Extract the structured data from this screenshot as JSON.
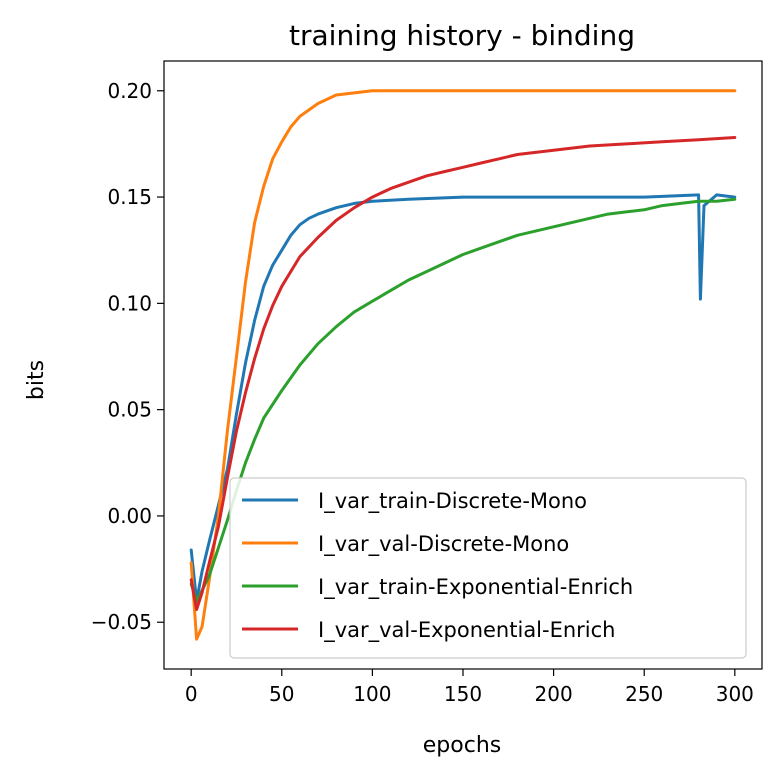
{
  "chart_data": {
    "type": "line",
    "title": "training history - binding",
    "xlabel": "epochs",
    "ylabel": "bits",
    "xlim": [
      -15,
      315
    ],
    "ylim": [
      -0.072,
      0.214
    ],
    "xticks": [
      0,
      50,
      100,
      150,
      200,
      250,
      300
    ],
    "xtick_labels": [
      "0",
      "50",
      "100",
      "150",
      "200",
      "250",
      "300"
    ],
    "yticks": [
      -0.05,
      0.0,
      0.05,
      0.1,
      0.15,
      0.2
    ],
    "ytick_labels": [
      "−0.05",
      "0.00",
      "0.05",
      "0.10",
      "0.15",
      "0.20"
    ],
    "grid": false,
    "legend_position": "lower-right",
    "series": [
      {
        "name": "I_var_train-Discrete-Mono",
        "color": "#1f77b4",
        "points": [
          [
            0,
            -0.016
          ],
          [
            3,
            -0.04
          ],
          [
            6,
            -0.026
          ],
          [
            10,
            -0.012
          ],
          [
            15,
            0.005
          ],
          [
            20,
            0.022
          ],
          [
            25,
            0.048
          ],
          [
            30,
            0.072
          ],
          [
            35,
            0.092
          ],
          [
            40,
            0.108
          ],
          [
            45,
            0.118
          ],
          [
            50,
            0.125
          ],
          [
            55,
            0.132
          ],
          [
            60,
            0.137
          ],
          [
            65,
            0.14
          ],
          [
            70,
            0.142
          ],
          [
            80,
            0.145
          ],
          [
            90,
            0.147
          ],
          [
            100,
            0.148
          ],
          [
            120,
            0.149
          ],
          [
            150,
            0.15
          ],
          [
            200,
            0.15
          ],
          [
            250,
            0.15
          ],
          [
            280,
            0.151
          ],
          [
            281,
            0.102
          ],
          [
            283,
            0.146
          ],
          [
            290,
            0.151
          ],
          [
            300,
            0.15
          ]
        ]
      },
      {
        "name": "I_var_val-Discrete-Mono",
        "color": "#ff7f0e",
        "points": [
          [
            0,
            -0.022
          ],
          [
            3,
            -0.058
          ],
          [
            6,
            -0.052
          ],
          [
            10,
            -0.03
          ],
          [
            15,
            0.0
          ],
          [
            20,
            0.04
          ],
          [
            25,
            0.075
          ],
          [
            30,
            0.11
          ],
          [
            35,
            0.138
          ],
          [
            40,
            0.155
          ],
          [
            45,
            0.168
          ],
          [
            50,
            0.176
          ],
          [
            55,
            0.183
          ],
          [
            60,
            0.188
          ],
          [
            65,
            0.191
          ],
          [
            70,
            0.194
          ],
          [
            80,
            0.198
          ],
          [
            90,
            0.199
          ],
          [
            100,
            0.2
          ],
          [
            150,
            0.2
          ],
          [
            200,
            0.2
          ],
          [
            250,
            0.2
          ],
          [
            300,
            0.2
          ]
        ]
      },
      {
        "name": "I_var_train-Exponential-Enrich",
        "color": "#2ca02c",
        "points": [
          [
            0,
            -0.032
          ],
          [
            3,
            -0.04
          ],
          [
            6,
            -0.035
          ],
          [
            10,
            -0.028
          ],
          [
            15,
            -0.015
          ],
          [
            20,
            -0.002
          ],
          [
            25,
            0.012
          ],
          [
            30,
            0.025
          ],
          [
            35,
            0.036
          ],
          [
            40,
            0.046
          ],
          [
            50,
            0.059
          ],
          [
            60,
            0.071
          ],
          [
            70,
            0.081
          ],
          [
            80,
            0.089
          ],
          [
            90,
            0.096
          ],
          [
            100,
            0.101
          ],
          [
            110,
            0.106
          ],
          [
            120,
            0.111
          ],
          [
            130,
            0.115
          ],
          [
            140,
            0.119
          ],
          [
            150,
            0.123
          ],
          [
            160,
            0.126
          ],
          [
            170,
            0.129
          ],
          [
            180,
            0.132
          ],
          [
            190,
            0.134
          ],
          [
            200,
            0.136
          ],
          [
            210,
            0.138
          ],
          [
            220,
            0.14
          ],
          [
            230,
            0.142
          ],
          [
            240,
            0.143
          ],
          [
            250,
            0.144
          ],
          [
            260,
            0.146
          ],
          [
            270,
            0.147
          ],
          [
            280,
            0.148
          ],
          [
            290,
            0.148
          ],
          [
            300,
            0.149
          ]
        ]
      },
      {
        "name": "I_var_val-Exponential-Enrich",
        "color": "#d62728",
        "points": [
          [
            0,
            -0.03
          ],
          [
            3,
            -0.044
          ],
          [
            6,
            -0.036
          ],
          [
            10,
            -0.022
          ],
          [
            15,
            -0.005
          ],
          [
            20,
            0.018
          ],
          [
            25,
            0.04
          ],
          [
            30,
            0.058
          ],
          [
            35,
            0.074
          ],
          [
            40,
            0.088
          ],
          [
            45,
            0.099
          ],
          [
            50,
            0.108
          ],
          [
            55,
            0.115
          ],
          [
            60,
            0.122
          ],
          [
            70,
            0.131
          ],
          [
            80,
            0.139
          ],
          [
            90,
            0.145
          ],
          [
            100,
            0.15
          ],
          [
            110,
            0.154
          ],
          [
            120,
            0.157
          ],
          [
            130,
            0.16
          ],
          [
            140,
            0.162
          ],
          [
            150,
            0.164
          ],
          [
            160,
            0.166
          ],
          [
            170,
            0.168
          ],
          [
            180,
            0.17
          ],
          [
            190,
            0.171
          ],
          [
            200,
            0.172
          ],
          [
            220,
            0.174
          ],
          [
            240,
            0.175
          ],
          [
            260,
            0.176
          ],
          [
            280,
            0.177
          ],
          [
            300,
            0.178
          ]
        ]
      }
    ]
  }
}
